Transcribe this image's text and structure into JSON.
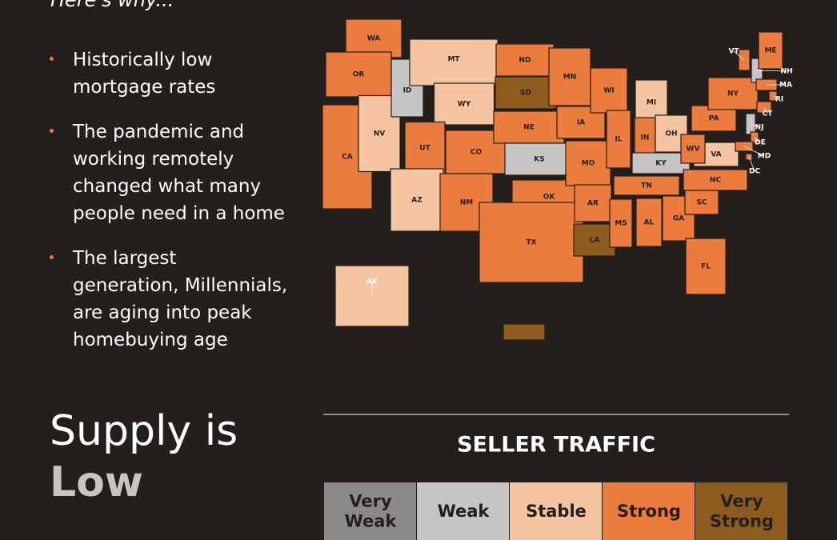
{
  "intro": "Here's why...",
  "bullets": [
    [
      "Historically low",
      "mortgage rates"
    ],
    [
      "The pandemic and",
      "working remotely",
      "changed what many",
      "people need in a home"
    ],
    [
      "The largest",
      "generation, Millennials,",
      "are aging into peak",
      "homebuying age"
    ]
  ],
  "heading": {
    "line1": "Supply is",
    "line2": "Low"
  },
  "legend": {
    "title": "SELLER TRAFFIC",
    "levels": [
      {
        "label": [
          "Very",
          "Weak"
        ],
        "color": "#8b8a88"
      },
      {
        "label": [
          "Weak"
        ],
        "color": "#c6c5c3"
      },
      {
        "label": [
          "Stable"
        ],
        "color": "#f5c4a1"
      },
      {
        "label": [
          "Strong"
        ],
        "color": "#ec7b3e"
      },
      {
        "label": [
          "Very",
          "Strong"
        ],
        "color": "#8c5b1d"
      }
    ]
  },
  "states": [
    {
      "label": "WA",
      "level": 3
    },
    {
      "label": "OR",
      "level": 3
    },
    {
      "label": "CA",
      "level": 3
    },
    {
      "label": "NV",
      "level": 2
    },
    {
      "label": "ID",
      "level": 1
    },
    {
      "label": "MT",
      "level": 2
    },
    {
      "label": "WY",
      "level": 2
    },
    {
      "label": "UT",
      "level": 3
    },
    {
      "label": "AZ",
      "level": 2
    },
    {
      "label": "CO",
      "level": 3
    },
    {
      "label": "NM",
      "level": 3
    },
    {
      "label": "ND",
      "level": 3
    },
    {
      "label": "SD",
      "level": 4
    },
    {
      "label": "NE",
      "level": 3
    },
    {
      "label": "KS",
      "level": 1
    },
    {
      "label": "OK",
      "level": 3
    },
    {
      "label": "TX",
      "level": 3
    },
    {
      "label": "MN",
      "level": 3
    },
    {
      "label": "IA",
      "level": 3
    },
    {
      "label": "MO",
      "level": 3
    },
    {
      "label": "AR",
      "level": 3
    },
    {
      "label": "LA",
      "level": 4
    },
    {
      "label": "WI",
      "level": 3
    },
    {
      "label": "IL",
      "level": 3
    },
    {
      "label": "MI",
      "level": 2
    },
    {
      "label": "IN",
      "level": 3
    },
    {
      "label": "OH",
      "level": 2
    },
    {
      "label": "KY",
      "level": 1
    },
    {
      "label": "TN",
      "level": 3
    },
    {
      "label": "MS",
      "level": 3
    },
    {
      "label": "AL",
      "level": 3
    },
    {
      "label": "GA",
      "level": 3
    },
    {
      "label": "FL",
      "level": 3
    },
    {
      "label": "SC",
      "level": 3
    },
    {
      "label": "NC",
      "level": 3
    },
    {
      "label": "VA",
      "level": 2
    },
    {
      "label": "WV",
      "level": 3
    },
    {
      "label": "PA",
      "level": 3
    },
    {
      "label": "NY",
      "level": 3
    },
    {
      "label": "VT",
      "level": 3
    },
    {
      "label": "NH",
      "level": 1
    },
    {
      "label": "ME",
      "level": 3
    },
    {
      "label": "MA",
      "level": 3
    },
    {
      "label": "RI",
      "level": 3
    },
    {
      "label": "CT",
      "level": 3
    },
    {
      "label": "NJ",
      "level": 1
    },
    {
      "label": "DE",
      "level": 3
    },
    {
      "label": "MD",
      "level": 3
    },
    {
      "label": "DC",
      "level": 3
    },
    {
      "label": "AK",
      "level": 2
    },
    {
      "label": null,
      "level": 4
    }
  ]
}
